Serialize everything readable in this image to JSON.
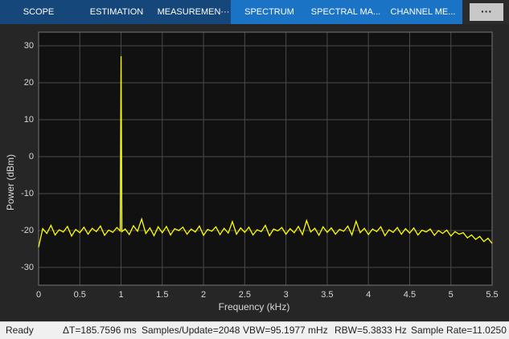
{
  "toolbar": {
    "tabs": [
      "SCOPE",
      "ESTIMATION",
      "MEASUREMEN···",
      "SPECTRUM",
      "SPECTRAL MA...",
      "CHANNEL ME..."
    ],
    "more": "···"
  },
  "chart_data": {
    "type": "line",
    "xlabel": "Frequency (kHz)",
    "ylabel": "Power (dBm)",
    "color": "#ffff00",
    "grid": true,
    "xlim": [
      0,
      5.5
    ],
    "xticks": [
      0,
      0.5,
      1,
      1.5,
      2,
      2.5,
      3,
      3.5,
      4,
      4.5,
      5,
      5.5
    ],
    "ylim": [
      -34.8,
      33.7
    ],
    "yticks": [
      -30,
      -20,
      -10,
      0,
      10,
      20,
      30
    ],
    "x": [
      0,
      0.05,
      0.1,
      0.15,
      0.2,
      0.25,
      0.3,
      0.35,
      0.4,
      0.45,
      0.5,
      0.55,
      0.6,
      0.65,
      0.7,
      0.75,
      0.8,
      0.85,
      0.9,
      0.95,
      0.99,
      1,
      1.01,
      1.05,
      1.1,
      1.15,
      1.2,
      1.25,
      1.3,
      1.35,
      1.4,
      1.45,
      1.5,
      1.55,
      1.6,
      1.65,
      1.7,
      1.75,
      1.8,
      1.85,
      1.9,
      1.95,
      2,
      2.05,
      2.1,
      2.15,
      2.2,
      2.25,
      2.3,
      2.35,
      2.4,
      2.45,
      2.5,
      2.55,
      2.6,
      2.65,
      2.7,
      2.75,
      2.8,
      2.85,
      2.9,
      2.95,
      3,
      3.05,
      3.1,
      3.15,
      3.2,
      3.25,
      3.3,
      3.35,
      3.4,
      3.45,
      3.5,
      3.55,
      3.6,
      3.65,
      3.7,
      3.75,
      3.8,
      3.85,
      3.9,
      3.95,
      4,
      4.05,
      4.1,
      4.15,
      4.2,
      4.25,
      4.3,
      4.35,
      4.4,
      4.45,
      4.5,
      4.55,
      4.6,
      4.65,
      4.7,
      4.75,
      4.8,
      4.85,
      4.9,
      4.95,
      5,
      5.05,
      5.1,
      5.15,
      5.2,
      5.25,
      5.3,
      5.35,
      5.4,
      5.45,
      5.5
    ],
    "values": [
      -24.5,
      -19.5,
      -20.8,
      -18.6,
      -21.2,
      -19.8,
      -20.4,
      -18.9,
      -21.5,
      -19.7,
      -20.6,
      -19.1,
      -21.0,
      -19.4,
      -20.3,
      -18.8,
      -21.3,
      -19.9,
      -20.5,
      -19.2,
      -20.1,
      27.2,
      -20.3,
      -19.6,
      -21.1,
      -18.7,
      -20.2,
      -16.9,
      -20.8,
      -19.3,
      -21.4,
      -19.0,
      -20.6,
      -18.9,
      -21.2,
      -19.5,
      -20.0,
      -19.1,
      -21.0,
      -19.6,
      -20.4,
      -18.8,
      -21.3,
      -19.7,
      -20.2,
      -19.0,
      -21.1,
      -19.4,
      -20.7,
      -17.6,
      -21.0,
      -19.3,
      -20.5,
      -19.1,
      -21.2,
      -19.8,
      -20.3,
      -18.6,
      -21.4,
      -19.6,
      -20.1,
      -19.2,
      -21.0,
      -19.5,
      -20.6,
      -18.9,
      -21.1,
      -17.3,
      -20.4,
      -19.4,
      -21.3,
      -19.0,
      -20.5,
      -19.3,
      -21.0,
      -19.7,
      -20.2,
      -18.8,
      -21.2,
      -17.5,
      -20.6,
      -19.4,
      -21.1,
      -19.6,
      -20.3,
      -19.0,
      -21.4,
      -19.8,
      -20.5,
      -19.2,
      -21.0,
      -19.5,
      -20.7,
      -19.3,
      -21.2,
      -19.9,
      -20.4,
      -19.6,
      -21.3,
      -20.0,
      -20.8,
      -19.9,
      -21.5,
      -20.3,
      -21.0,
      -20.6,
      -22.0,
      -21.2,
      -22.4,
      -21.6,
      -23.0,
      -22.1,
      -23.5
    ]
  },
  "status_bar": {
    "state": "Ready",
    "items": [
      "ΔT=185.7596 ms",
      "Samples/Update=2048",
      "VBW=95.1977 mHz",
      "RBW=5.3833 Hz",
      "Sample Rate=11.0250"
    ]
  }
}
